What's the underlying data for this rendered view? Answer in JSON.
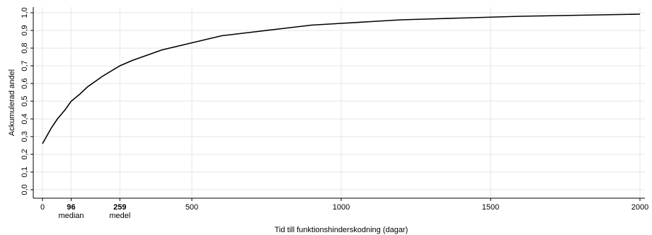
{
  "chart_data": {
    "type": "line",
    "title": "",
    "xlabel": "Tid till funktionshinderskodning (dagar)",
    "ylabel": "Ackumulerad andel",
    "xlim": [
      0,
      2000
    ],
    "ylim": [
      0,
      1.0
    ],
    "grid": true,
    "x_ticks": [
      {
        "value": 0,
        "label": "0",
        "sublabel": "",
        "bold": false
      },
      {
        "value": 96,
        "label": "96",
        "sublabel": "median",
        "bold": true
      },
      {
        "value": 259,
        "label": "259",
        "sublabel": "medel",
        "bold": true
      },
      {
        "value": 500,
        "label": "500",
        "sublabel": "",
        "bold": false
      },
      {
        "value": 1000,
        "label": "1000",
        "sublabel": "",
        "bold": false
      },
      {
        "value": 1500,
        "label": "1500",
        "sublabel": "",
        "bold": false
      },
      {
        "value": 2000,
        "label": "2000",
        "sublabel": "",
        "bold": false
      }
    ],
    "y_ticks": [
      {
        "value": 0.0,
        "label": "0,0"
      },
      {
        "value": 0.1,
        "label": "0,1"
      },
      {
        "value": 0.2,
        "label": "0,2"
      },
      {
        "value": 0.3,
        "label": "0,3"
      },
      {
        "value": 0.4,
        "label": "0,4"
      },
      {
        "value": 0.5,
        "label": "0,5"
      },
      {
        "value": 0.6,
        "label": "0,6"
      },
      {
        "value": 0.7,
        "label": "0,7"
      },
      {
        "value": 0.8,
        "label": "0,8"
      },
      {
        "value": 0.9,
        "label": "0,9"
      },
      {
        "value": 1.0,
        "label": "1,0"
      }
    ],
    "series": [
      {
        "x": [
          0,
          10,
          20,
          30,
          50,
          75,
          96,
          125,
          150,
          200,
          259,
          300,
          400,
          500,
          600,
          700,
          800,
          900,
          1000,
          1100,
          1200,
          1300,
          1400,
          1500,
          1600,
          1700,
          1800,
          1900,
          2000
        ],
        "y": [
          0.26,
          0.29,
          0.32,
          0.35,
          0.4,
          0.45,
          0.5,
          0.54,
          0.58,
          0.64,
          0.7,
          0.73,
          0.79,
          0.83,
          0.87,
          0.89,
          0.91,
          0.93,
          0.94,
          0.95,
          0.96,
          0.965,
          0.97,
          0.975,
          0.98,
          0.983,
          0.986,
          0.989,
          0.992
        ]
      }
    ]
  }
}
